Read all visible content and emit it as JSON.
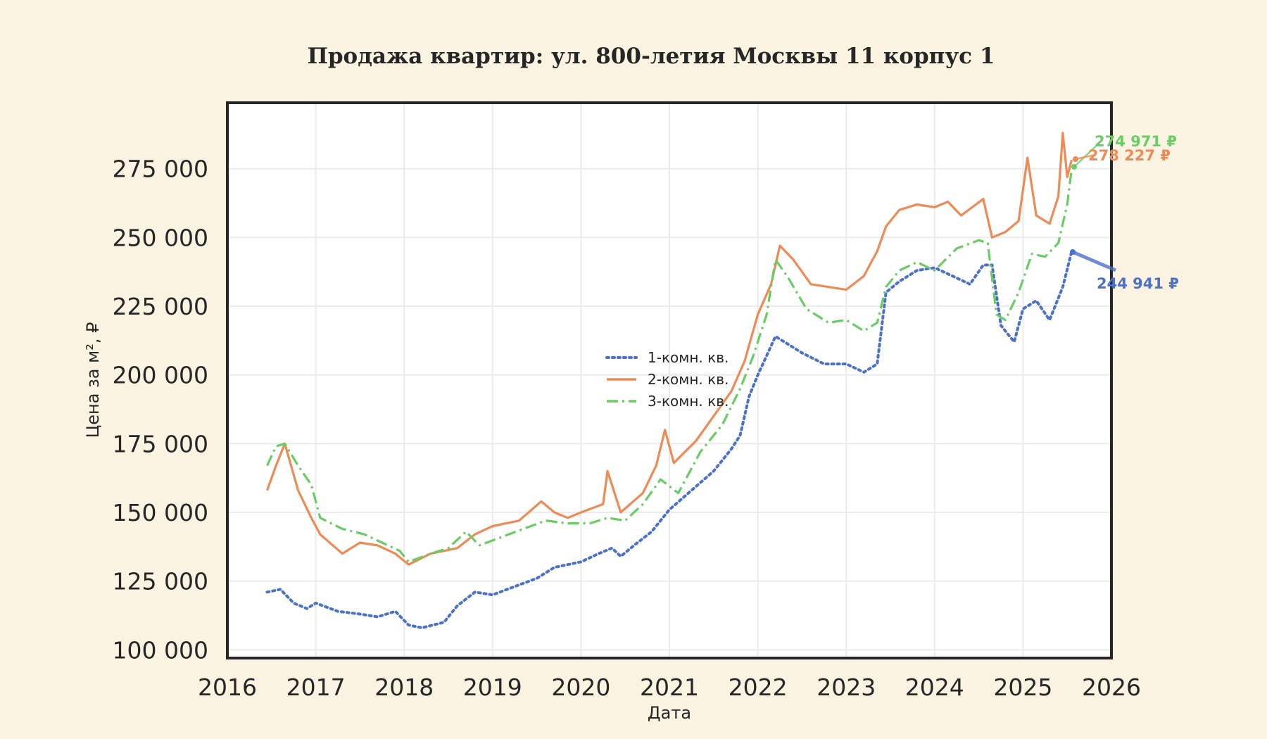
{
  "title": "Продажа квартир: ул. 800-летия Москвы 11 корпус 1",
  "colors": {
    "background": "#faf3e1",
    "plot_background": "#ffffff",
    "grid": "#ebebeb",
    "frame": "#262626",
    "one_room": "#4c72c8",
    "two_room": "#ee8a55",
    "three_room": "#6acc64"
  },
  "chart_data": {
    "type": "line",
    "title": "Продажа квартир: ул. 800-летия Москвы 11 корпус 1",
    "xlabel": "Дата",
    "ylabel": "Цена за м², ₽",
    "xlim": [
      2016,
      2026
    ],
    "ylim": [
      97000,
      299000
    ],
    "x_ticks": [
      2016,
      2017,
      2018,
      2019,
      2020,
      2021,
      2022,
      2023,
      2024,
      2025,
      2026
    ],
    "x_tick_labels": [
      "2016",
      "2017",
      "2018",
      "2019",
      "2020",
      "2021",
      "2022",
      "2023",
      "2024",
      "2025",
      "2026"
    ],
    "y_ticks": [
      100000,
      125000,
      150000,
      175000,
      200000,
      225000,
      250000,
      275000
    ],
    "y_tick_labels": [
      "100 000",
      "125 000",
      "150 000",
      "175 000",
      "200 000",
      "225 000",
      "250 000",
      "275 000"
    ],
    "grid": true,
    "legend_position": "center",
    "series": [
      {
        "name": "1-комн. кв.",
        "style": "dotted",
        "color": "#4c72c8",
        "x": [
          2016.45,
          2016.6,
          2016.75,
          2016.9,
          2017.0,
          2017.25,
          2017.5,
          2017.7,
          2017.9,
          2018.05,
          2018.2,
          2018.45,
          2018.6,
          2018.8,
          2019.0,
          2019.25,
          2019.5,
          2019.7,
          2019.85,
          2020.0,
          2020.2,
          2020.35,
          2020.45,
          2020.6,
          2020.8,
          2021.0,
          2021.25,
          2021.5,
          2021.7,
          2021.8,
          2021.9,
          2022.0,
          2022.2,
          2022.35,
          2022.5,
          2022.75,
          2023.0,
          2023.2,
          2023.35,
          2023.45,
          2023.6,
          2023.8,
          2024.0,
          2024.2,
          2024.4,
          2024.55,
          2024.65,
          2024.75,
          2024.9,
          2025.0,
          2025.15,
          2025.3,
          2025.45,
          2025.55
        ],
        "values": [
          121000,
          122000,
          117000,
          115000,
          117000,
          114000,
          113000,
          112000,
          114000,
          109000,
          108000,
          110000,
          116000,
          121000,
          120000,
          123000,
          126000,
          130000,
          131000,
          132000,
          135000,
          137000,
          134000,
          138000,
          143000,
          151000,
          158000,
          165000,
          173000,
          178000,
          192000,
          200000,
          214000,
          211000,
          208000,
          204000,
          204000,
          201000,
          204000,
          230000,
          234000,
          238000,
          239000,
          236000,
          233000,
          240000,
          240000,
          218000,
          212000,
          224000,
          227000,
          220000,
          232000,
          244941
        ]
      },
      {
        "name": "2-комн. кв.",
        "style": "solid",
        "color": "#ee8a55",
        "x": [
          2016.45,
          2016.55,
          2016.65,
          2016.8,
          2016.95,
          2017.05,
          2017.3,
          2017.5,
          2017.7,
          2017.9,
          2018.05,
          2018.3,
          2018.6,
          2018.8,
          2019.0,
          2019.3,
          2019.55,
          2019.7,
          2019.85,
          2020.0,
          2020.25,
          2020.3,
          2020.45,
          2020.7,
          2020.85,
          2020.95,
          2021.05,
          2021.3,
          2021.5,
          2021.7,
          2021.85,
          2022.0,
          2022.15,
          2022.25,
          2022.4,
          2022.6,
          2022.8,
          2023.0,
          2023.2,
          2023.35,
          2023.45,
          2023.6,
          2023.8,
          2024.0,
          2024.15,
          2024.3,
          2024.55,
          2024.65,
          2024.8,
          2024.95,
          2025.05,
          2025.15,
          2025.3,
          2025.4,
          2025.45,
          2025.5,
          2025.55
        ],
        "values": [
          158000,
          167000,
          175000,
          158000,
          148000,
          142000,
          135000,
          139000,
          138000,
          135000,
          131000,
          135000,
          137000,
          142000,
          145000,
          147000,
          154000,
          150000,
          148000,
          150000,
          153000,
          165000,
          150000,
          157000,
          167000,
          180000,
          168000,
          176000,
          185000,
          194000,
          205000,
          222000,
          233000,
          247000,
          242000,
          233000,
          232000,
          231000,
          236000,
          245000,
          254000,
          260000,
          262000,
          261000,
          263000,
          258000,
          264000,
          250000,
          252000,
          256000,
          279000,
          258000,
          255000,
          265000,
          288000,
          272000,
          278227
        ]
      },
      {
        "name": "3-комн. кв.",
        "style": "dashdot",
        "color": "#6acc64",
        "x": [
          2016.45,
          2016.55,
          2016.65,
          2016.8,
          2016.95,
          2017.05,
          2017.3,
          2017.55,
          2017.75,
          2017.95,
          2018.05,
          2018.3,
          2018.5,
          2018.7,
          2018.85,
          2019.1,
          2019.35,
          2019.6,
          2019.85,
          2020.1,
          2020.3,
          2020.5,
          2020.7,
          2020.9,
          2021.1,
          2021.35,
          2021.6,
          2021.8,
          2021.95,
          2022.1,
          2022.2,
          2022.35,
          2022.55,
          2022.8,
          2023.0,
          2023.2,
          2023.35,
          2023.45,
          2023.6,
          2023.8,
          2024.0,
          2024.25,
          2024.5,
          2024.6,
          2024.7,
          2024.8,
          2024.95,
          2025.1,
          2025.25,
          2025.4,
          2025.5,
          2025.55
        ],
        "values": [
          167000,
          174000,
          175000,
          167000,
          160000,
          148000,
          144000,
          142000,
          139000,
          136000,
          132000,
          135000,
          137000,
          143000,
          138000,
          141000,
          144000,
          147000,
          146000,
          146000,
          148000,
          147000,
          153000,
          162000,
          157000,
          172000,
          182000,
          195000,
          207000,
          222000,
          242000,
          235000,
          224000,
          219000,
          220000,
          216000,
          219000,
          232000,
          238000,
          241000,
          238000,
          246000,
          249000,
          248000,
          222000,
          220000,
          230000,
          244000,
          243000,
          248000,
          262000,
          274971
        ]
      }
    ],
    "annotations": [
      {
        "text": "274 971 ₽",
        "series": "3-комн. кв.",
        "value": 274971
      },
      {
        "text": "278 227 ₽",
        "series": "2-комн. кв.",
        "value": 278227
      },
      {
        "text": "244 941 ₽",
        "series": "1-комн. кв.",
        "value": 244941
      }
    ]
  },
  "legend": {
    "items": [
      {
        "label": "1-комн. кв."
      },
      {
        "label": "2-комн. кв."
      },
      {
        "label": "3-комн. кв."
      }
    ]
  }
}
